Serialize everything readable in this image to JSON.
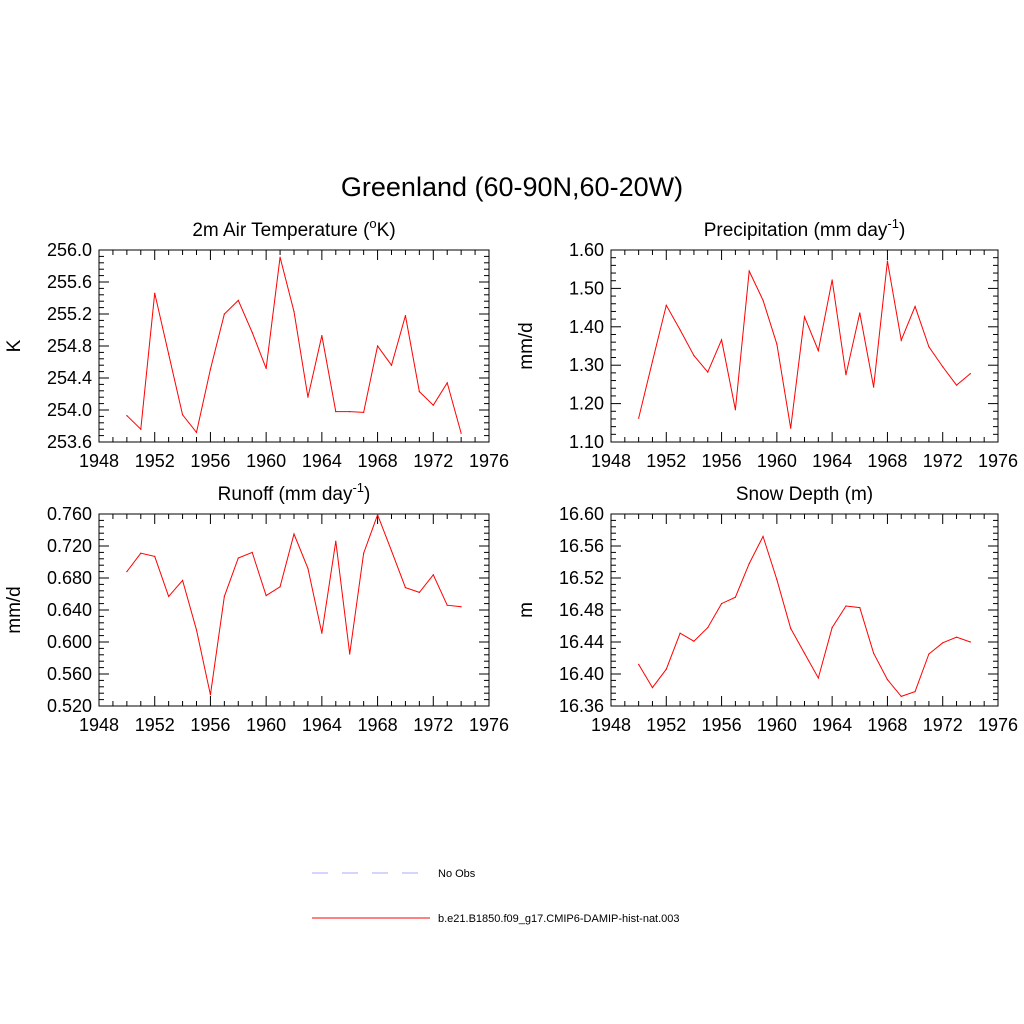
{
  "figure": {
    "title": "Greenland (60-90N,60-20W)"
  },
  "legend": [
    {
      "label": "No Obs",
      "color": "#a9a9ff",
      "dash": "dashed"
    },
    {
      "label": "b.e21.B1850.f09_g17.CMIP6-DAMIP-hist-nat.003",
      "color": "#ff0000",
      "dash": "solid"
    }
  ],
  "chart_data": [
    {
      "type": "line",
      "title": "2m Air Temperature (°K)",
      "title_parts": {
        "pre": "2m Air Temperature (",
        "sup": "o",
        "post": "K)"
      },
      "ylabel": "K",
      "xlim": [
        1948,
        1976
      ],
      "ylim": [
        253.6,
        256.0
      ],
      "xticks": [
        1948,
        1952,
        1956,
        1960,
        1964,
        1968,
        1972,
        1976
      ],
      "yticks": [
        253.6,
        254.0,
        254.4,
        254.8,
        255.2,
        255.6,
        256.0
      ],
      "ydecimals": 1,
      "x": [
        1950,
        1951,
        1952,
        1953,
        1954,
        1955,
        1956,
        1957,
        1958,
        1959,
        1960,
        1961,
        1962,
        1963,
        1964,
        1965,
        1966,
        1967,
        1968,
        1969,
        1970,
        1971,
        1972,
        1973,
        1974
      ],
      "series": [
        {
          "color": "#ff0000",
          "values": [
            253.93,
            253.76,
            255.46,
            254.7,
            253.94,
            253.72,
            254.51,
            255.2,
            255.37,
            254.97,
            254.52,
            255.91,
            255.23,
            254.16,
            254.93,
            253.98,
            253.98,
            253.97,
            254.8,
            254.56,
            255.18,
            254.23,
            254.06,
            254.34,
            253.71
          ]
        }
      ]
    },
    {
      "type": "line",
      "title": "Precipitation (mm day-1)",
      "title_parts": {
        "pre": "Precipitation (mm day",
        "sup": "-1",
        "post": ")"
      },
      "ylabel": "mm/d",
      "xlim": [
        1948,
        1976
      ],
      "ylim": [
        1.1,
        1.6
      ],
      "xticks": [
        1948,
        1952,
        1956,
        1960,
        1964,
        1968,
        1972,
        1976
      ],
      "yticks": [
        1.1,
        1.2,
        1.3,
        1.4,
        1.5,
        1.6
      ],
      "ydecimals": 2,
      "x": [
        1950,
        1951,
        1952,
        1953,
        1954,
        1955,
        1956,
        1957,
        1958,
        1959,
        1960,
        1961,
        1962,
        1963,
        1964,
        1965,
        1966,
        1967,
        1968,
        1969,
        1970,
        1971,
        1972,
        1973,
        1974
      ],
      "series": [
        {
          "color": "#ff0000",
          "values": [
            1.162,
            1.31,
            1.456,
            1.392,
            1.325,
            1.282,
            1.366,
            1.184,
            1.545,
            1.469,
            1.355,
            1.136,
            1.426,
            1.338,
            1.522,
            1.275,
            1.436,
            1.243,
            1.571,
            1.365,
            1.453,
            1.348,
            1.296,
            1.248,
            1.278
          ]
        }
      ]
    },
    {
      "type": "line",
      "title": "Runoff (mm day-1)",
      "title_parts": {
        "pre": "Runoff (mm day",
        "sup": "-1",
        "post": ")"
      },
      "ylabel": "mm/d",
      "xlim": [
        1948,
        1976
      ],
      "ylim": [
        0.52,
        0.76
      ],
      "xticks": [
        1948,
        1952,
        1956,
        1960,
        1964,
        1968,
        1972,
        1976
      ],
      "yticks": [
        0.52,
        0.56,
        0.6,
        0.64,
        0.68,
        0.72,
        0.76
      ],
      "ydecimals": 3,
      "x": [
        1950,
        1951,
        1952,
        1953,
        1954,
        1955,
        1956,
        1957,
        1958,
        1959,
        1960,
        1961,
        1962,
        1963,
        1964,
        1965,
        1966,
        1967,
        1968,
        1969,
        1970,
        1971,
        1972,
        1973,
        1974
      ],
      "series": [
        {
          "color": "#ff0000",
          "values": [
            0.688,
            0.711,
            0.707,
            0.657,
            0.677,
            0.615,
            0.534,
            0.657,
            0.705,
            0.712,
            0.658,
            0.669,
            0.735,
            0.692,
            0.611,
            0.726,
            0.585,
            0.711,
            0.759,
            0.714,
            0.668,
            0.662,
            0.684,
            0.646,
            0.644
          ]
        }
      ]
    },
    {
      "type": "line",
      "title": "Snow Depth (m)",
      "title_parts": {
        "pre": "Snow Depth (m)",
        "sup": "",
        "post": ""
      },
      "ylabel": "m",
      "xlim": [
        1948,
        1976
      ],
      "ylim": [
        16.36,
        16.6
      ],
      "xticks": [
        1948,
        1952,
        1956,
        1960,
        1964,
        1968,
        1972,
        1976
      ],
      "yticks": [
        16.36,
        16.4,
        16.44,
        16.48,
        16.52,
        16.56,
        16.6
      ],
      "ydecimals": 2,
      "x": [
        1950,
        1951,
        1952,
        1953,
        1954,
        1955,
        1956,
        1957,
        1958,
        1959,
        1960,
        1961,
        1962,
        1963,
        1964,
        1965,
        1966,
        1967,
        1968,
        1969,
        1970,
        1971,
        1972,
        1973,
        1974
      ],
      "series": [
        {
          "color": "#ff0000",
          "values": [
            16.412,
            16.383,
            16.406,
            16.451,
            16.441,
            16.458,
            16.488,
            16.496,
            16.538,
            16.572,
            16.518,
            16.457,
            16.426,
            16.395,
            16.458,
            16.485,
            16.483,
            16.426,
            16.393,
            16.372,
            16.378,
            16.425,
            16.439,
            16.446,
            16.44
          ]
        }
      ]
    }
  ]
}
